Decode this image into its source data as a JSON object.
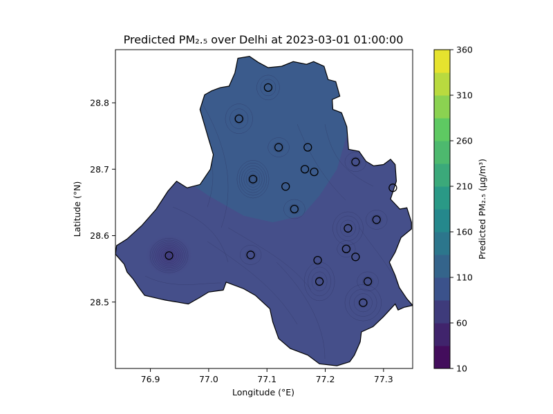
{
  "title": "Predicted PM₂.₅ over Delhi at 2023-03-01 01:00:00",
  "xlabel": "Longitude (°E)",
  "ylabel": "Latitude (°N)",
  "colorbar_label": "Predicted PM₂.₅ (µg/m³)",
  "colorbar": {
    "colormap": "viridis",
    "levels": [
      10,
      35,
      60,
      85,
      110,
      135,
      160,
      185,
      210,
      235,
      260,
      285,
      310,
      335,
      360
    ],
    "tick_values": [
      10,
      60,
      110,
      160,
      210,
      260,
      310,
      360
    ],
    "tick_labels": [
      "10",
      "60",
      "110",
      "160",
      "210",
      "260",
      "310",
      "360"
    ]
  },
  "chart_data": {
    "type": "contour-map",
    "title": "Predicted PM₂.₅ over Delhi at 2023-03-01 01:00:00",
    "xlabel": "Longitude (°E)",
    "ylabel": "Latitude (°N)",
    "xlim": [
      76.84,
      77.35
    ],
    "ylim": [
      28.4,
      28.88
    ],
    "xticks": [
      76.9,
      77.0,
      77.1,
      77.2,
      77.3
    ],
    "xtick_labels": [
      "76.9",
      "77.0",
      "77.1",
      "77.2",
      "77.3"
    ],
    "yticks": [
      28.5,
      28.6,
      28.7,
      28.8
    ],
    "ytick_labels": [
      "28.5",
      "28.6",
      "28.7",
      "28.8"
    ],
    "boundary": [
      [
        77.05,
        28.867
      ],
      [
        77.07,
        28.87
      ],
      [
        77.085,
        28.861
      ],
      [
        77.102,
        28.853
      ],
      [
        77.125,
        28.855
      ],
      [
        77.145,
        28.862
      ],
      [
        77.168,
        28.858
      ],
      [
        77.18,
        28.862
      ],
      [
        77.198,
        28.855
      ],
      [
        77.205,
        28.835
      ],
      [
        77.218,
        28.832
      ],
      [
        77.225,
        28.81
      ],
      [
        77.212,
        28.805
      ],
      [
        77.213,
        28.79
      ],
      [
        77.228,
        28.785
      ],
      [
        77.237,
        28.764
      ],
      [
        77.24,
        28.73
      ],
      [
        77.258,
        28.727
      ],
      [
        77.27,
        28.712
      ],
      [
        77.283,
        28.705
      ],
      [
        77.3,
        28.707
      ],
      [
        77.312,
        28.715
      ],
      [
        77.32,
        28.707
      ],
      [
        77.322,
        28.682
      ],
      [
        77.312,
        28.655
      ],
      [
        77.328,
        28.64
      ],
      [
        77.34,
        28.642
      ],
      [
        77.348,
        28.62
      ],
      [
        77.348,
        28.61
      ],
      [
        77.33,
        28.597
      ],
      [
        77.32,
        28.575
      ],
      [
        77.31,
        28.56
      ],
      [
        77.32,
        28.54
      ],
      [
        77.327,
        28.522
      ],
      [
        77.34,
        28.505
      ],
      [
        77.35,
        28.495
      ],
      [
        77.335,
        28.492
      ],
      [
        77.325,
        28.488
      ],
      [
        77.32,
        28.497
      ],
      [
        77.3,
        28.478
      ],
      [
        77.282,
        28.463
      ],
      [
        77.262,
        28.455
      ],
      [
        77.26,
        28.44
      ],
      [
        77.25,
        28.42
      ],
      [
        77.242,
        28.41
      ],
      [
        77.22,
        28.404
      ],
      [
        77.19,
        28.407
      ],
      [
        77.17,
        28.42
      ],
      [
        77.14,
        28.43
      ],
      [
        77.12,
        28.445
      ],
      [
        77.11,
        28.47
      ],
      [
        77.105,
        28.49
      ],
      [
        77.08,
        28.51
      ],
      [
        77.06,
        28.52
      ],
      [
        77.03,
        28.53
      ],
      [
        77.025,
        28.518
      ],
      [
        77.0,
        28.515
      ],
      [
        76.985,
        28.507
      ],
      [
        76.965,
        28.497
      ],
      [
        76.945,
        28.5
      ],
      [
        76.925,
        28.503
      ],
      [
        76.915,
        28.505
      ],
      [
        76.89,
        28.51
      ],
      [
        76.88,
        28.522
      ],
      [
        76.87,
        28.535
      ],
      [
        76.86,
        28.545
      ],
      [
        76.855,
        28.557
      ],
      [
        76.84,
        28.572
      ],
      [
        76.842,
        28.585
      ],
      [
        76.86,
        28.595
      ],
      [
        76.885,
        28.615
      ],
      [
        76.91,
        28.64
      ],
      [
        76.93,
        28.667
      ],
      [
        76.945,
        28.682
      ],
      [
        76.963,
        28.672
      ],
      [
        76.985,
        28.677
      ],
      [
        77.003,
        28.7
      ],
      [
        77.008,
        28.722
      ],
      [
        77.0,
        28.745
      ],
      [
        76.995,
        28.76
      ],
      [
        76.985,
        28.79
      ],
      [
        76.993,
        28.812
      ],
      [
        77.005,
        28.818
      ],
      [
        77.02,
        28.823
      ],
      [
        77.035,
        28.825
      ],
      [
        77.045,
        28.845
      ],
      [
        77.05,
        28.867
      ]
    ],
    "stations": [
      {
        "lon": 77.102,
        "lat": 28.823
      },
      {
        "lon": 77.052,
        "lat": 28.776
      },
      {
        "lon": 77.12,
        "lat": 28.733
      },
      {
        "lon": 77.17,
        "lat": 28.733
      },
      {
        "lon": 77.252,
        "lat": 28.711
      },
      {
        "lon": 77.165,
        "lat": 28.7
      },
      {
        "lon": 77.181,
        "lat": 28.696
      },
      {
        "lon": 77.076,
        "lat": 28.685
      },
      {
        "lon": 77.132,
        "lat": 28.674
      },
      {
        "lon": 77.316,
        "lat": 28.672
      },
      {
        "lon": 77.147,
        "lat": 28.64
      },
      {
        "lon": 77.288,
        "lat": 28.624
      },
      {
        "lon": 77.239,
        "lat": 28.611
      },
      {
        "lon": 77.236,
        "lat": 28.58
      },
      {
        "lon": 77.252,
        "lat": 28.568
      },
      {
        "lon": 76.932,
        "lat": 28.57
      },
      {
        "lon": 77.072,
        "lat": 28.571
      },
      {
        "lon": 77.187,
        "lat": 28.563
      },
      {
        "lon": 77.19,
        "lat": 28.531
      },
      {
        "lon": 77.273,
        "lat": 28.531
      },
      {
        "lon": 77.265,
        "lat": 28.499
      }
    ],
    "fill_regions": [
      {
        "name": "north-band",
        "value": 112,
        "color": "#3b5b8c"
      },
      {
        "name": "south-band",
        "value": 95,
        "color": "#454f8a"
      }
    ],
    "grid": false
  }
}
